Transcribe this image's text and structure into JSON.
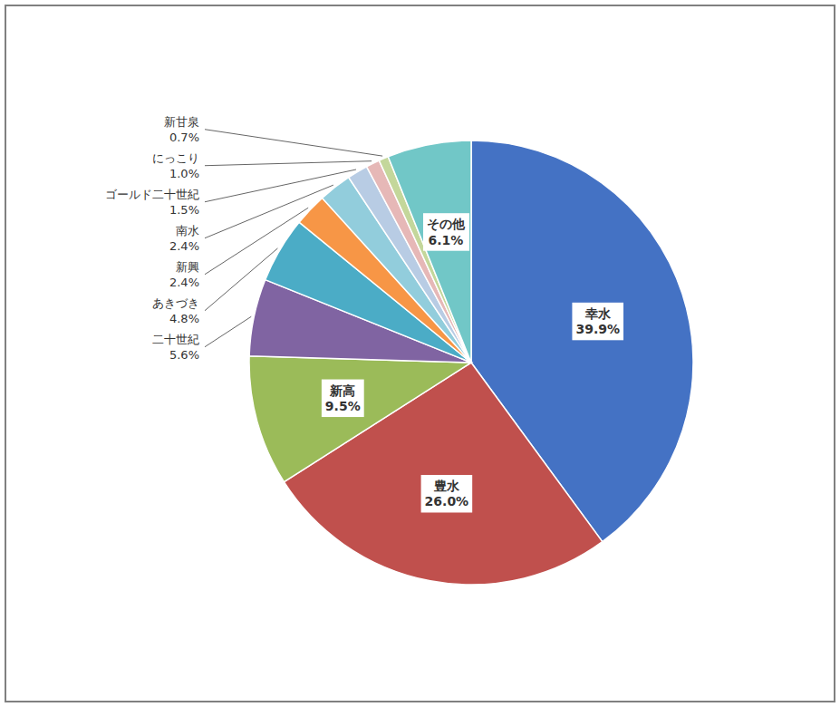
{
  "chart_data": {
    "type": "pie",
    "categories": [
      "幸水",
      "豊水",
      "新高",
      "二十世紀",
      "あきづき",
      "新興",
      "南水",
      "ゴールド二十世紀",
      "にっこり",
      "新甘泉",
      "その他"
    ],
    "values": [
      39.9,
      26.0,
      9.5,
      5.6,
      4.8,
      2.4,
      2.4,
      1.5,
      1.0,
      0.7,
      6.1
    ],
    "value_labels": [
      "39.9%",
      "26.0%",
      "9.5%",
      "5.6%",
      "4.8%",
      "2.4%",
      "2.4%",
      "1.5%",
      "1.0%",
      "0.7%",
      "6.1%"
    ],
    "colors": [
      "#4472C4",
      "#C0504D",
      "#9BBB59",
      "#8064A2",
      "#4BACC6",
      "#F79646",
      "#92CDDC",
      "#B8CCE4",
      "#E6B8B7",
      "#C4D79B",
      "#71C7C7"
    ],
    "data_labels": true
  }
}
